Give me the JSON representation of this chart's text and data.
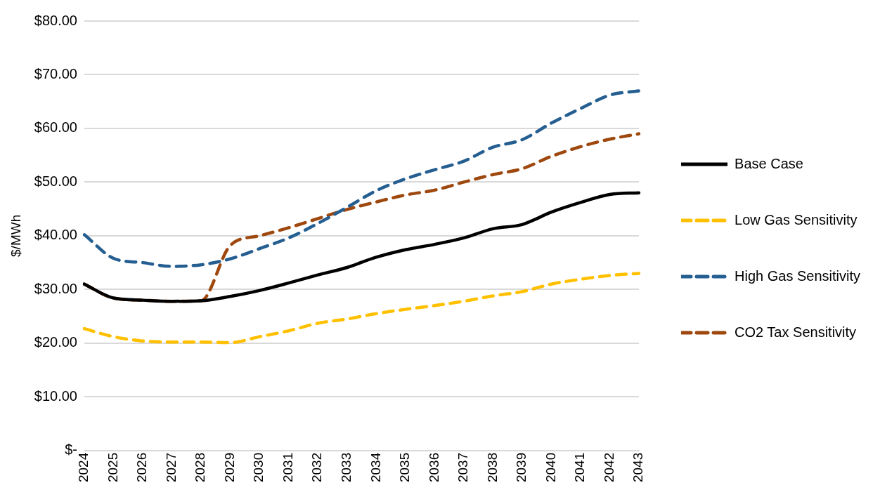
{
  "chart_data": {
    "type": "line",
    "ylabel": "$/MWh",
    "categories": [
      "2024",
      "2025",
      "2026",
      "2027",
      "2028",
      "2029",
      "2030",
      "2031",
      "2032",
      "2033",
      "2034",
      "2035",
      "2036",
      "2037",
      "2038",
      "2039",
      "2040",
      "2041",
      "2042",
      "2043"
    ],
    "series": [
      {
        "name": "Base Case",
        "color": "#000000",
        "line_style": "solid",
        "values": [
          31.0,
          28.4,
          28.0,
          27.8,
          27.9,
          28.7,
          29.8,
          31.2,
          32.7,
          34.1,
          36.0,
          37.4,
          38.4,
          39.6,
          41.3,
          42.1,
          44.4,
          46.2,
          47.7,
          48.0
        ]
      },
      {
        "name": "Low Gas Sensitivity",
        "color": "#ffc000",
        "line_style": "dashed",
        "values": [
          22.7,
          21.2,
          20.4,
          20.2,
          20.2,
          20.1,
          21.2,
          22.3,
          23.7,
          24.5,
          25.5,
          26.3,
          27.0,
          27.8,
          28.8,
          29.6,
          31.0,
          31.9,
          32.6,
          33.0
        ]
      },
      {
        "name": "High Gas Sensitivity",
        "color": "#255e91",
        "line_style": "dashed",
        "values": [
          40.2,
          35.8,
          35.0,
          34.3,
          34.6,
          35.7,
          37.6,
          39.6,
          42.3,
          45.3,
          48.4,
          50.6,
          52.3,
          53.9,
          56.5,
          57.9,
          61.0,
          63.7,
          66.2,
          67.0
        ]
      },
      {
        "name": "CO2 Tax Sensitivity",
        "color": "#9e480e",
        "line_style": "dashed",
        "values": [
          31.0,
          28.4,
          28.0,
          27.8,
          27.9,
          38.2,
          40.0,
          41.5,
          43.2,
          44.9,
          46.3,
          47.6,
          48.5,
          50.0,
          51.4,
          52.5,
          54.8,
          56.6,
          58.0,
          59.0
        ]
      }
    ],
    "ylim": [
      0,
      80
    ],
    "yticks": [
      {
        "value": 0,
        "label": "$-"
      },
      {
        "value": 10,
        "label": "$10.00"
      },
      {
        "value": 20,
        "label": "$20.00"
      },
      {
        "value": 30,
        "label": "$30.00"
      },
      {
        "value": 40,
        "label": "$40.00"
      },
      {
        "value": 50,
        "label": "$50.00"
      },
      {
        "value": 60,
        "label": "$60.00"
      },
      {
        "value": 70,
        "label": "$70.00"
      },
      {
        "value": 80,
        "label": "$80.00"
      }
    ],
    "grid": "y",
    "legend": "right",
    "marker": "none"
  }
}
